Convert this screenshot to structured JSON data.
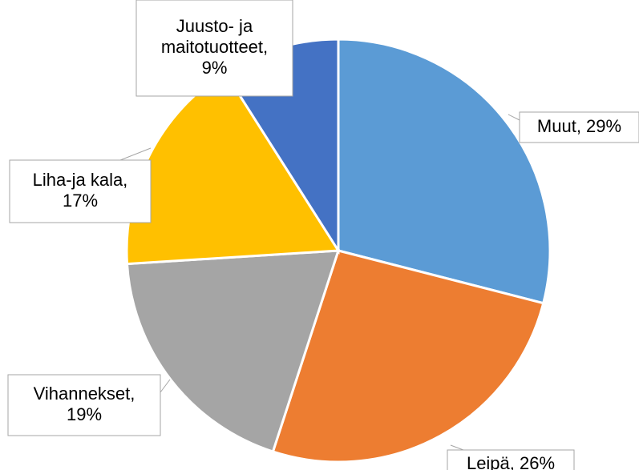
{
  "chart_data": {
    "type": "pie",
    "values": [
      29,
      26,
      19,
      17,
      9
    ],
    "value_labels": [
      "Muut, 29%",
      "Leipä, 26%",
      "Vihannekset,\n19%",
      "Liha-ja kala,\n17%",
      "Juusto- ja\nmaitotuotteet,\n9%"
    ],
    "colors": [
      "#5b9bd5",
      "#ed7d31",
      "#a5a5a5",
      "#ffc000",
      "#4472c4"
    ]
  }
}
